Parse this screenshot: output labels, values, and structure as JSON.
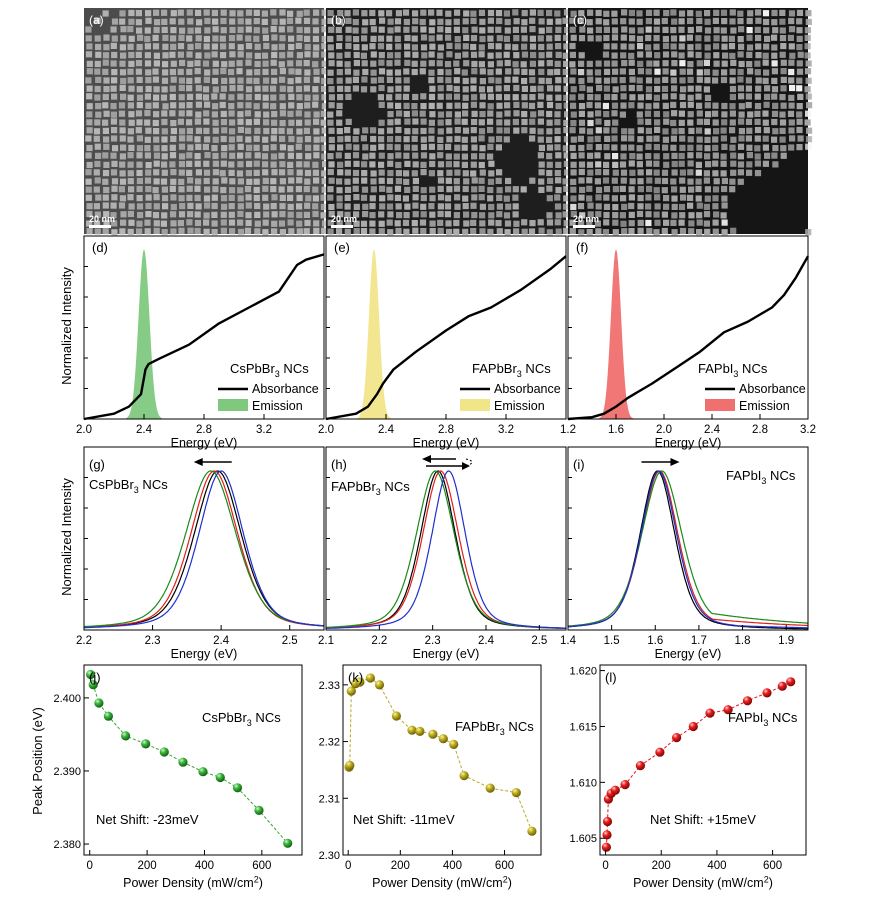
{
  "tem_panels": [
    {
      "label": "(a)",
      "scale": "20 nm",
      "bg": "#8a8a8a",
      "cube": "#b9b9b9",
      "gap": "#4c4c4c",
      "label_color": "#ffffff"
    },
    {
      "label": "(b)",
      "scale": "20 nm",
      "bg": "#2a2a2a",
      "cube": "#b0b0b0",
      "gap": "#1e1e1e",
      "label_color": "#ffffff"
    },
    {
      "label": "(c)",
      "scale": "20 nm",
      "bg": "#222222",
      "cube": "#a8a8a8",
      "gap": "#151515",
      "label_color": "#ffffff"
    }
  ],
  "row_ylabels": {
    "spectra": "Normalized Intensity",
    "pl": "Normalized Intensity",
    "peak": "Peak Position (eV)"
  },
  "colors": {
    "absorbance": "#000000",
    "emission_d": "#7fc97f",
    "emission_e": "#f1e58a",
    "emission_f": "#f07070",
    "pl_black": "#000000",
    "pl_red": "#e0201b",
    "pl_green": "#1a8a1a",
    "pl_blue": "#1f2fd0",
    "peak_j": "#2fa82f",
    "peak_k": "#b9a920",
    "peak_l": "#e01818"
  },
  "chart_data": [
    {
      "panel": "(d)",
      "type": "area",
      "label": "CsPbBr3 NCs",
      "label_main": "CsPbBr",
      "label_sub": "3",
      "label_tail": " NCs",
      "xlabel": "Energy (eV)",
      "ylabel": "Normalized Intensity",
      "xlim": [
        2.0,
        3.6
      ],
      "xticks": [
        "2.0",
        "2.4",
        "2.8",
        "3.2"
      ],
      "legend": [
        "Absorbance",
        "Emission"
      ],
      "absorbance": {
        "x": [
          2.0,
          2.2,
          2.3,
          2.38,
          2.41,
          2.43,
          2.5,
          2.7,
          2.9,
          3.1,
          3.3,
          3.42,
          3.48,
          3.6
        ],
        "y": [
          0.0,
          0.03,
          0.07,
          0.14,
          0.28,
          0.31,
          0.34,
          0.42,
          0.54,
          0.63,
          0.72,
          0.87,
          0.9,
          0.93
        ]
      },
      "emission": {
        "center": 2.4,
        "fwhm": 0.085,
        "height": 0.96
      }
    },
    {
      "panel": "(e)",
      "type": "area",
      "label": "FAPbBr3 NCs",
      "label_main": "FAPbBr",
      "label_sub": "3",
      "label_tail": " NCs",
      "xlabel": "Energy (eV)",
      "xlim": [
        2.0,
        3.6
      ],
      "xticks": [
        "2.0",
        "2.4",
        "2.8",
        "3.2"
      ],
      "legend": [
        "Absorbance",
        "Emission"
      ],
      "absorbance": {
        "x": [
          2.0,
          2.2,
          2.28,
          2.34,
          2.38,
          2.45,
          2.6,
          2.8,
          2.95,
          3.1,
          3.3,
          3.5,
          3.6
        ],
        "y": [
          0.0,
          0.03,
          0.07,
          0.14,
          0.2,
          0.28,
          0.38,
          0.5,
          0.58,
          0.63,
          0.73,
          0.85,
          0.92
        ]
      },
      "emission": {
        "center": 2.32,
        "fwhm": 0.08,
        "height": 0.96
      }
    },
    {
      "panel": "(f)",
      "type": "area",
      "label": "FAPbI3 NCs",
      "label_main": "FAPbI",
      "label_sub": "3",
      "label_tail": " NCs",
      "xlabel": "Energy (eV)",
      "xlim": [
        1.2,
        3.2
      ],
      "xticks": [
        "1.2",
        "1.6",
        "2.0",
        "2.4",
        "2.8",
        "3.2"
      ],
      "legend": [
        "Absorbance",
        "Emission"
      ],
      "absorbance": {
        "x": [
          1.2,
          1.4,
          1.5,
          1.6,
          1.7,
          1.9,
          2.1,
          2.3,
          2.5,
          2.7,
          2.9,
          3.0,
          3.1,
          3.2
        ],
        "y": [
          0.0,
          0.01,
          0.03,
          0.07,
          0.12,
          0.2,
          0.29,
          0.38,
          0.49,
          0.55,
          0.63,
          0.7,
          0.8,
          0.92
        ]
      },
      "emission": {
        "center": 1.6,
        "fwhm": 0.1,
        "height": 0.96
      }
    },
    {
      "panel": "(g)",
      "type": "line",
      "label": "CsPbBr3 NCs",
      "label_main": "CsPbBr",
      "label_sub": "3",
      "label_tail": " NCs",
      "xlabel": "Energy (eV)",
      "ylabel": "Normalized Intensity",
      "xlim": [
        2.2,
        2.55
      ],
      "xticks": [
        "2.2",
        "2.3",
        "2.4",
        "2.5"
      ],
      "arrow": "left",
      "series": [
        {
          "color": "black",
          "center": 2.395,
          "fwhm": 0.082
        },
        {
          "color": "red",
          "center": 2.39,
          "fwhm": 0.082
        },
        {
          "color": "green",
          "center": 2.385,
          "fwhm": 0.088
        },
        {
          "color": "blue",
          "center": 2.4,
          "fwhm": 0.078
        }
      ]
    },
    {
      "panel": "(h)",
      "type": "line",
      "label": "FAPbBr3 NCs",
      "label_main": "FAPbBr",
      "label_sub": "3",
      "label_tail": " NCs",
      "xlabel": "Energy (eV)",
      "xlim": [
        2.1,
        2.55
      ],
      "xticks": [
        "2.1",
        "2.2",
        "2.3",
        "2.4",
        "2.5"
      ],
      "arrow": "both",
      "series": [
        {
          "color": "black",
          "center": 2.31,
          "fwhm": 0.078
        },
        {
          "color": "red",
          "center": 2.315,
          "fwhm": 0.08
        },
        {
          "color": "green",
          "center": 2.305,
          "fwhm": 0.085
        },
        {
          "color": "blue",
          "center": 2.33,
          "fwhm": 0.075
        }
      ]
    },
    {
      "panel": "(i)",
      "type": "line",
      "label": "FAPbI3 NCs",
      "label_main": "FAPbI",
      "label_sub": "3",
      "label_tail": " NCs",
      "xlabel": "Energy (eV)",
      "xlim": [
        1.4,
        1.95
      ],
      "xticks": [
        "1.4",
        "1.5",
        "1.6",
        "1.7",
        "1.8",
        "1.9"
      ],
      "arrow": "right",
      "series": [
        {
          "color": "black",
          "center": 1.605,
          "fwhm": 0.095,
          "tail": 0.0
        },
        {
          "color": "red",
          "center": 1.61,
          "fwhm": 0.1,
          "tail": 0.08
        },
        {
          "color": "green",
          "center": 1.615,
          "fwhm": 0.11,
          "tail": 0.12
        },
        {
          "color": "blue",
          "center": 1.608,
          "fwhm": 0.098,
          "tail": 0.04
        }
      ]
    },
    {
      "panel": "(j)",
      "type": "scatter",
      "label_main": "CsPbBr",
      "label_sub": "3",
      "label_tail": " NCs",
      "net_shift": "Net Shift: -23meV",
      "xlabel_main": "Power Density (mW/cm",
      "xlabel_sup": "2",
      "xlabel_tail": ")",
      "ylabel": "Peak Position (eV)",
      "xlim": [
        -20,
        740
      ],
      "ylim": [
        2.3785,
        2.4045
      ],
      "xticks": [
        0,
        200,
        400,
        600
      ],
      "yticks": [
        2.38,
        2.39,
        2.4
      ],
      "ytick_labels": [
        "2.380",
        "2.390",
        "2.400"
      ],
      "x": [
        3,
        12,
        32,
        65,
        125,
        195,
        260,
        325,
        395,
        455,
        515,
        590,
        690
      ],
      "y": [
        2.4032,
        2.4018,
        2.3993,
        2.3975,
        2.3948,
        2.3937,
        2.3926,
        2.3912,
        2.3899,
        2.3891,
        2.3877,
        2.3846,
        2.3801
      ]
    },
    {
      "panel": "(k)",
      "type": "scatter",
      "label_main": "FAPbBr",
      "label_sub": "3",
      "label_tail": " NCs",
      "net_shift": "Net Shift: -11meV",
      "xlabel_main": "Power Density (mW/cm",
      "xlabel_sup": "2",
      "xlabel_tail": ")",
      "xlim": [
        -20,
        740
      ],
      "ylim": [
        2.3,
        2.3335
      ],
      "xticks": [
        0,
        200,
        400,
        600
      ],
      "yticks": [
        2.3,
        2.31,
        2.32,
        2.33
      ],
      "ytick_labels": [
        "2.30",
        "2.31",
        "2.32",
        "2.33"
      ],
      "x": [
        3,
        6,
        12,
        28,
        45,
        85,
        120,
        185,
        245,
        275,
        325,
        365,
        405,
        445,
        545,
        645,
        705
      ],
      "y": [
        2.3155,
        2.3158,
        2.3289,
        2.3302,
        2.3305,
        2.3312,
        2.33,
        2.3245,
        2.322,
        2.3218,
        2.3213,
        2.3205,
        2.3195,
        2.314,
        2.3118,
        2.311,
        2.3042
      ]
    },
    {
      "panel": "(l)",
      "type": "scatter",
      "label_main": "FAPbI",
      "label_sub": "3",
      "label_tail": " NCs",
      "net_shift": "Net Shift: +15meV",
      "xlabel_main": "Power Density (mW/cm",
      "xlabel_sup": "2",
      "xlabel_tail": ")",
      "xlim": [
        -20,
        720
      ],
      "ylim": [
        1.6035,
        1.6205
      ],
      "xticks": [
        0,
        200,
        400,
        600
      ],
      "yticks": [
        1.605,
        1.61,
        1.615,
        1.62
      ],
      "ytick_labels": [
        "1.605",
        "1.610",
        "1.615",
        "1.620"
      ],
      "x": [
        3,
        5,
        7,
        10,
        20,
        35,
        70,
        125,
        195,
        255,
        315,
        375,
        440,
        510,
        580,
        635,
        665
      ],
      "y": [
        1.6042,
        1.6053,
        1.6065,
        1.6085,
        1.609,
        1.6093,
        1.6098,
        1.6115,
        1.6127,
        1.614,
        1.615,
        1.6162,
        1.6165,
        1.6173,
        1.618,
        1.6186,
        1.619
      ]
    }
  ]
}
